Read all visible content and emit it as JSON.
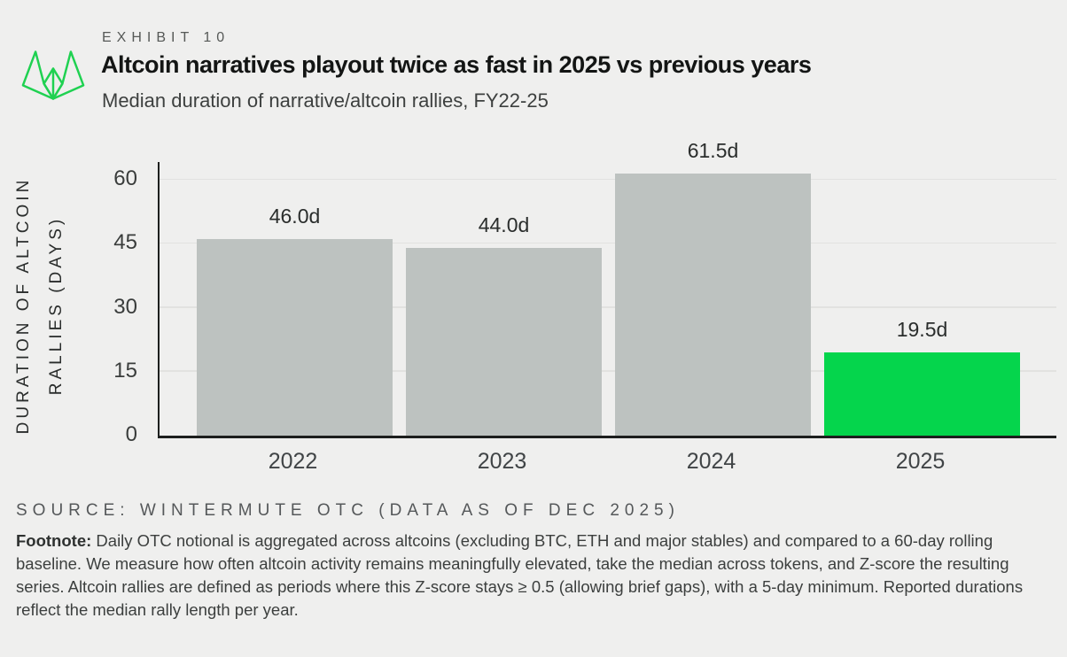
{
  "header": {
    "exhibit": "EXHIBIT 10",
    "title": "Altcoin narratives playout twice as fast in 2025 vs previous years",
    "subtitle": "Median duration of narrative/altcoin rallies, FY22-25",
    "logo_color": "#1fd151"
  },
  "chart_data": {
    "type": "bar",
    "title": "Altcoin narratives playout twice as fast in 2025 vs previous years",
    "subtitle": "Median duration of narrative/altcoin rallies, FY22-25",
    "categories": [
      "2022",
      "2023",
      "2024",
      "2025"
    ],
    "values": [
      46.0,
      44.0,
      61.5,
      19.5
    ],
    "value_labels": [
      "46.0d",
      "44.0d",
      "61.5d",
      "19.5d"
    ],
    "ylabel_lines": [
      "DURATION OF ALTCOIN",
      "RALLIES (DAYS)"
    ],
    "yticks": [
      0,
      15,
      30,
      45,
      60
    ],
    "ylim": [
      0,
      62.5
    ],
    "grid": true,
    "legend": "none",
    "bar_color": "#bdc2c0",
    "highlight_color": "#05d54c",
    "highlight_index": 3,
    "axis_color": "#1d1f1e",
    "gridline_color": "#e2e2e0"
  },
  "footer": {
    "source": "SOURCE: WINTERMUTE OTC (DATA AS OF DEC 2025)",
    "footnote_label": "Footnote:",
    "footnote_text": "Daily OTC notional is aggregated across altcoins (excluding BTC, ETH and major stables) and compared to a 60-day rolling baseline. We measure how often altcoin activity remains meaningfully elevated, take the median across tokens, and Z-score the resulting series. Altcoin rallies are defined as periods where this Z-score stays ≥ 0.5 (allowing brief gaps), with a 5-day minimum. Reported durations reflect the median rally length per year."
  }
}
